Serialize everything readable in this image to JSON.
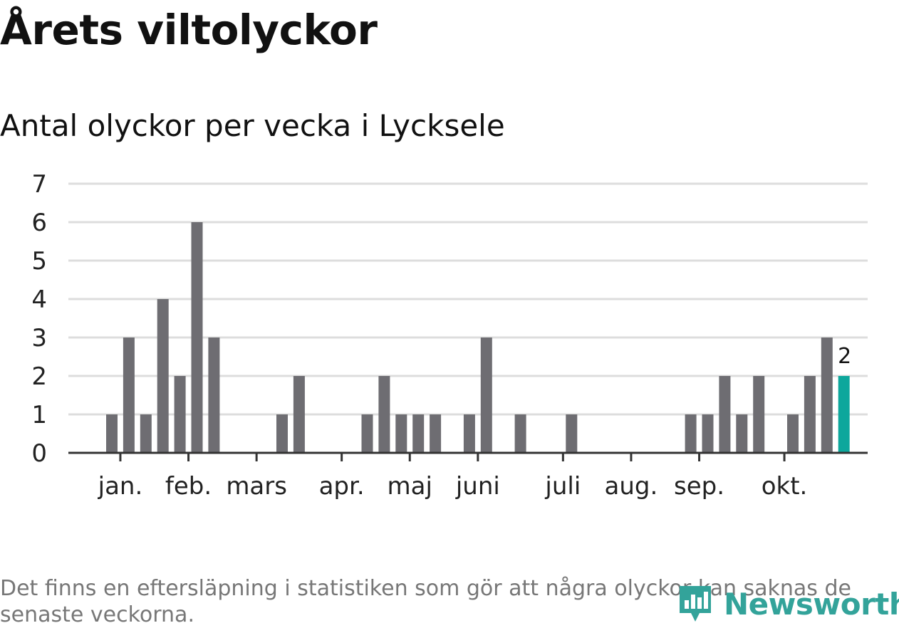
{
  "title": "Årets viltolyckor",
  "subtitle": "Antal olyckor per vecka i Lycksele",
  "footnote": "Det finns en eftersläpning i statistiken som gör att några olyckor kan saknas de senaste veckorna.",
  "brand": {
    "name": "Newsworthy",
    "icon": "newsworthy-logo-icon",
    "color": "#33a39a"
  },
  "chart_data": {
    "type": "bar",
    "title": "Antal olyckor per vecka i Lycksele",
    "xlabel": "",
    "ylabel": "",
    "ylim": [
      0,
      7
    ],
    "yticks": [
      0,
      1,
      2,
      3,
      4,
      5,
      6,
      7
    ],
    "grid": true,
    "weeks": [
      1,
      2,
      3,
      4,
      5,
      6,
      7,
      8,
      9,
      10,
      11,
      12,
      13,
      14,
      15,
      16,
      17,
      18,
      19,
      20,
      21,
      22,
      23,
      24,
      25,
      26,
      27,
      28,
      29,
      30,
      31,
      32,
      33,
      34,
      35,
      36,
      37,
      38,
      39,
      40,
      41,
      42,
      43
    ],
    "values": [
      1,
      3,
      1,
      4,
      2,
      6,
      3,
      0,
      0,
      0,
      1,
      2,
      0,
      0,
      0,
      1,
      2,
      1,
      1,
      1,
      0,
      1,
      3,
      0,
      1,
      0,
      0,
      1,
      0,
      0,
      0,
      0,
      0,
      0,
      1,
      1,
      2,
      1,
      2,
      0,
      1,
      2,
      3
    ],
    "highlight": {
      "week": 44,
      "value": 2,
      "label": "2"
    },
    "month_ticks": [
      {
        "label": "jan.",
        "week": 1.5
      },
      {
        "label": "feb.",
        "week": 5.5
      },
      {
        "label": "mars",
        "week": 9.5
      },
      {
        "label": "apr.",
        "week": 14.5
      },
      {
        "label": "maj",
        "week": 18.5
      },
      {
        "label": "juni",
        "week": 22.5
      },
      {
        "label": "juli",
        "week": 27.5
      },
      {
        "label": "aug.",
        "week": 31.5
      },
      {
        "label": "sep.",
        "week": 35.5
      },
      {
        "label": "okt.",
        "week": 40.5
      }
    ],
    "colors": {
      "bar": "#6e6d72",
      "highlight": "#0da79c",
      "grid": "#dddddd",
      "axis": "#333333"
    }
  }
}
